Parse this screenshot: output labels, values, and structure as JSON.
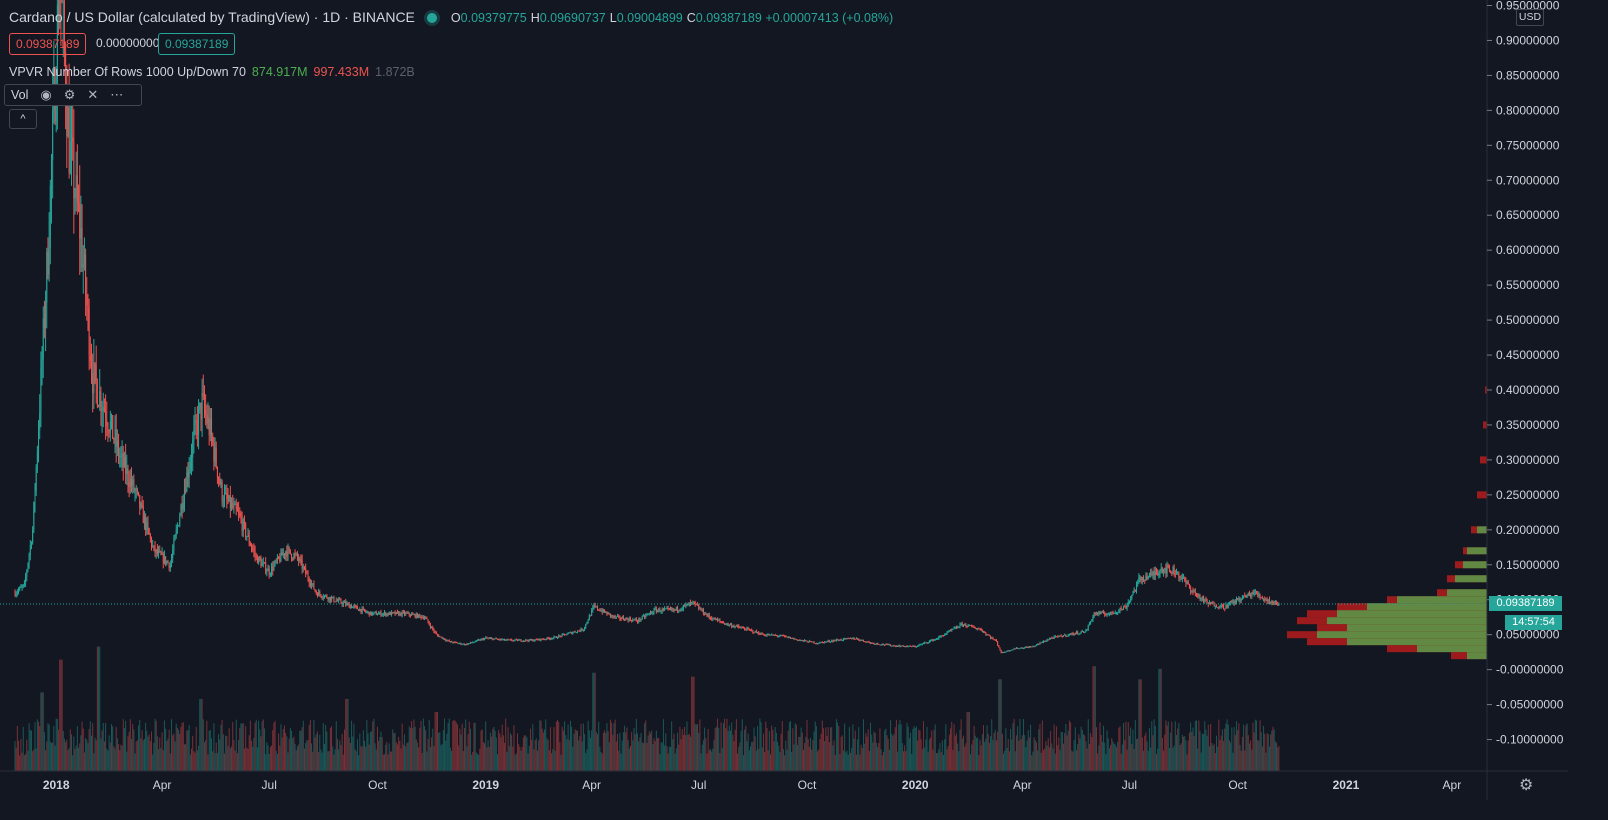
{
  "header": {
    "title": "Cardano / US Dollar (calculated by TradingView) · 1D · BINANCE",
    "open_label": "O",
    "open": "0.09379775",
    "high_label": "H",
    "high": "0.09690737",
    "low_label": "L",
    "low": "0.09004899",
    "close_label": "C",
    "close": "0.09387189",
    "change": "+0.00007413 (+0.08%)",
    "bid": "0.09387189",
    "spread": "0.00000000",
    "ask": "0.09387189"
  },
  "indicators": {
    "vpvr_label": "VPVR Number Of Rows 1000 Up/Down 70",
    "vpvr_up": "874.917M",
    "vpvr_down": "997.433M",
    "vpvr_total": "1.872B",
    "vol_label": "Vol",
    "vol_icons": [
      "eye-icon",
      "gear-icon",
      "close-icon",
      "more-icon"
    ],
    "collapse_icon": "chevron-up-icon"
  },
  "axis": {
    "currency": "USD",
    "last_price": "0.09387189",
    "countdown": "14:57:54"
  },
  "colors": {
    "background": "#131722",
    "up": "#26a69a",
    "down": "#ef5350",
    "vpvr_up": "#4caf50",
    "vpvr_down": "#b71c1c"
  },
  "chart_data": {
    "type": "candlestick",
    "y_label_unit": "USD",
    "y_ticks": [
      "0.95000000",
      "0.90000000",
      "0.85000000",
      "0.80000000",
      "0.75000000",
      "0.70000000",
      "0.65000000",
      "0.60000000",
      "0.55000000",
      "0.50000000",
      "0.45000000",
      "0.40000000",
      "0.35000000",
      "0.30000000",
      "0.25000000",
      "0.20000000",
      "0.15000000",
      "0.10000000",
      "0.05000000",
      "-0.00000000",
      "-0.05000000",
      "-0.10000000"
    ],
    "ylim": [
      -0.145,
      0.955
    ],
    "x_ticks": [
      {
        "label": "2018",
        "date": "2018-01-01"
      },
      {
        "label": "Apr",
        "date": "2018-04-01"
      },
      {
        "label": "Jul",
        "date": "2018-07-01"
      },
      {
        "label": "Oct",
        "date": "2018-10-01"
      },
      {
        "label": "2019",
        "date": "2019-01-01"
      },
      {
        "label": "Apr",
        "date": "2019-04-01"
      },
      {
        "label": "Jul",
        "date": "2019-07-01"
      },
      {
        "label": "Oct",
        "date": "2019-10-01"
      },
      {
        "label": "2020",
        "date": "2020-01-01"
      },
      {
        "label": "Apr",
        "date": "2020-04-01"
      },
      {
        "label": "Jul",
        "date": "2020-07-01"
      },
      {
        "label": "Oct",
        "date": "2020-10-01"
      },
      {
        "label": "2021",
        "date": "2021-01-01"
      },
      {
        "label": "Apr",
        "date": "2021-04-01"
      }
    ],
    "x_range": [
      "2017-11-27",
      "2021-04-30"
    ],
    "price_path": [
      [
        "2017-11-27",
        0.11
      ],
      [
        "2017-12-05",
        0.12
      ],
      [
        "2017-12-12",
        0.2
      ],
      [
        "2017-12-18",
        0.38
      ],
      [
        "2017-12-25",
        0.6
      ],
      [
        "2018-01-04",
        1.0
      ],
      [
        "2018-01-12",
        0.75
      ],
      [
        "2018-01-22",
        0.62
      ],
      [
        "2018-02-01",
        0.42
      ],
      [
        "2018-02-12",
        0.37
      ],
      [
        "2018-02-25",
        0.3
      ],
      [
        "2018-03-10",
        0.25
      ],
      [
        "2018-03-25",
        0.17
      ],
      [
        "2018-04-08",
        0.15
      ],
      [
        "2018-04-20",
        0.26
      ],
      [
        "2018-04-28",
        0.33
      ],
      [
        "2018-05-05",
        0.38
      ],
      [
        "2018-05-12",
        0.34
      ],
      [
        "2018-05-22",
        0.25
      ],
      [
        "2018-06-05",
        0.22
      ],
      [
        "2018-06-20",
        0.16
      ],
      [
        "2018-07-01",
        0.14
      ],
      [
        "2018-07-15",
        0.17
      ],
      [
        "2018-07-25",
        0.16
      ],
      [
        "2018-08-10",
        0.11
      ],
      [
        "2018-08-25",
        0.1
      ],
      [
        "2018-09-10",
        0.09
      ],
      [
        "2018-09-25",
        0.08
      ],
      [
        "2018-10-10",
        0.08
      ],
      [
        "2018-10-25",
        0.08
      ],
      [
        "2018-11-10",
        0.075
      ],
      [
        "2018-11-20",
        0.05
      ],
      [
        "2018-12-01",
        0.04
      ],
      [
        "2018-12-15",
        0.036
      ],
      [
        "2019-01-01",
        0.045
      ],
      [
        "2019-01-20",
        0.042
      ],
      [
        "2019-02-10",
        0.042
      ],
      [
        "2019-03-01",
        0.046
      ],
      [
        "2019-03-25",
        0.058
      ],
      [
        "2019-04-03",
        0.09
      ],
      [
        "2019-04-20",
        0.075
      ],
      [
        "2019-05-10",
        0.07
      ],
      [
        "2019-05-25",
        0.085
      ],
      [
        "2019-06-10",
        0.085
      ],
      [
        "2019-06-26",
        0.095
      ],
      [
        "2019-07-10",
        0.075
      ],
      [
        "2019-07-25",
        0.065
      ],
      [
        "2019-08-10",
        0.058
      ],
      [
        "2019-08-25",
        0.05
      ],
      [
        "2019-09-10",
        0.048
      ],
      [
        "2019-09-25",
        0.042
      ],
      [
        "2019-10-10",
        0.038
      ],
      [
        "2019-10-25",
        0.042
      ],
      [
        "2019-11-10",
        0.045
      ],
      [
        "2019-11-25",
        0.038
      ],
      [
        "2019-12-15",
        0.034
      ],
      [
        "2020-01-01",
        0.033
      ],
      [
        "2020-01-20",
        0.045
      ],
      [
        "2020-02-10",
        0.065
      ],
      [
        "2020-02-25",
        0.058
      ],
      [
        "2020-03-10",
        0.04
      ],
      [
        "2020-03-14",
        0.024
      ],
      [
        "2020-03-25",
        0.03
      ],
      [
        "2020-04-10",
        0.033
      ],
      [
        "2020-04-25",
        0.045
      ],
      [
        "2020-05-10",
        0.05
      ],
      [
        "2020-05-25",
        0.055
      ],
      [
        "2020-06-01",
        0.08
      ],
      [
        "2020-06-15",
        0.08
      ],
      [
        "2020-06-28",
        0.09
      ],
      [
        "2020-07-10",
        0.13
      ],
      [
        "2020-07-20",
        0.135
      ],
      [
        "2020-07-28",
        0.145
      ],
      [
        "2020-08-10",
        0.14
      ],
      [
        "2020-08-25",
        0.11
      ],
      [
        "2020-09-05",
        0.095
      ],
      [
        "2020-09-20",
        0.09
      ],
      [
        "2020-10-01",
        0.1
      ],
      [
        "2020-10-15",
        0.11
      ],
      [
        "2020-10-25",
        0.1
      ],
      [
        "2020-11-05",
        0.094
      ]
    ],
    "volume_spikes": [
      [
        "2017-12-20",
        0.6
      ],
      [
        "2018-01-05",
        0.85
      ],
      [
        "2018-02-06",
        0.95
      ],
      [
        "2018-05-04",
        0.55
      ],
      [
        "2018-09-05",
        0.55
      ],
      [
        "2018-11-20",
        0.45
      ],
      [
        "2019-04-03",
        0.75
      ],
      [
        "2019-06-26",
        0.72
      ],
      [
        "2020-02-15",
        0.45
      ],
      [
        "2020-03-13",
        0.7
      ],
      [
        "2020-06-01",
        0.8
      ],
      [
        "2020-07-10",
        0.7
      ],
      [
        "2020-07-27",
        0.78
      ]
    ],
    "volume_profile": [
      [
        0.4,
        0.01,
        0.0
      ],
      [
        0.35,
        0.02,
        0.0
      ],
      [
        0.3,
        0.035,
        0.0
      ],
      [
        0.25,
        0.05,
        0.0
      ],
      [
        0.2,
        0.08,
        0.05
      ],
      [
        0.17,
        0.12,
        0.1
      ],
      [
        0.15,
        0.16,
        0.12
      ],
      [
        0.13,
        0.2,
        0.16
      ],
      [
        0.11,
        0.25,
        0.2
      ],
      [
        0.1,
        0.5,
        0.45
      ],
      [
        0.09,
        0.75,
        0.6
      ],
      [
        0.08,
        0.9,
        0.75
      ],
      [
        0.07,
        0.95,
        0.8
      ],
      [
        0.06,
        0.85,
        0.7
      ],
      [
        0.05,
        1.0,
        0.85
      ],
      [
        0.04,
        0.9,
        0.7
      ],
      [
        0.03,
        0.5,
        0.35
      ],
      [
        0.02,
        0.18,
        0.1
      ]
    ],
    "last_price": 0.09387189
  }
}
